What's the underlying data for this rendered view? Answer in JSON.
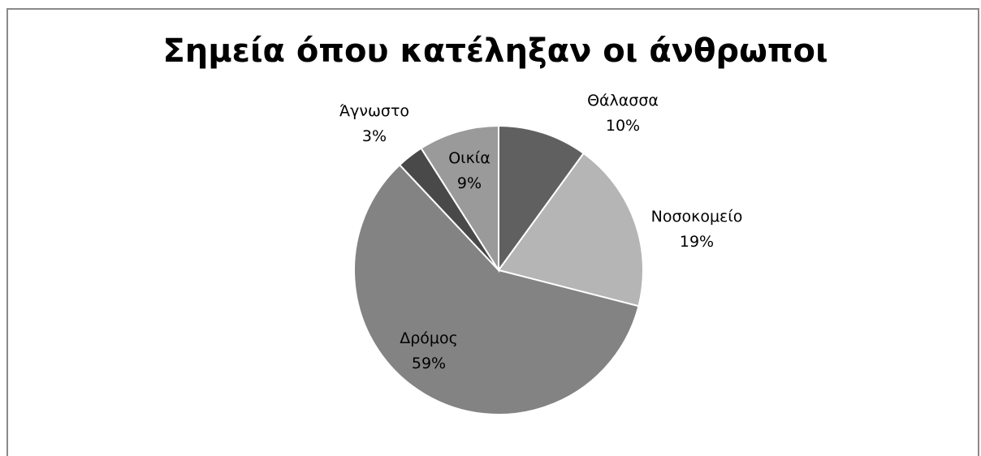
{
  "chart_data": {
    "type": "pie",
    "title": "Σημεία όπου κατέληξαν οι άνθρωποι",
    "slices": [
      {
        "name": "Θάλασσα",
        "value": 10,
        "label": "10%",
        "color": "#606060"
      },
      {
        "name": "Νοσοκομείο",
        "value": 19,
        "label": "19%",
        "color": "#b5b5b5"
      },
      {
        "name": "Δρόμος",
        "value": 59,
        "label": "59%",
        "color": "#838383"
      },
      {
        "name": "Άγνωστο",
        "value": 3,
        "label": "3%",
        "color": "#494949"
      },
      {
        "name": "Οικία",
        "value": 9,
        "label": "9%",
        "color": "#9a9a9a"
      }
    ],
    "start_angle": "12 o'clock",
    "direction": "clockwise",
    "legend": "none",
    "data_labels": "category name and percentage"
  }
}
